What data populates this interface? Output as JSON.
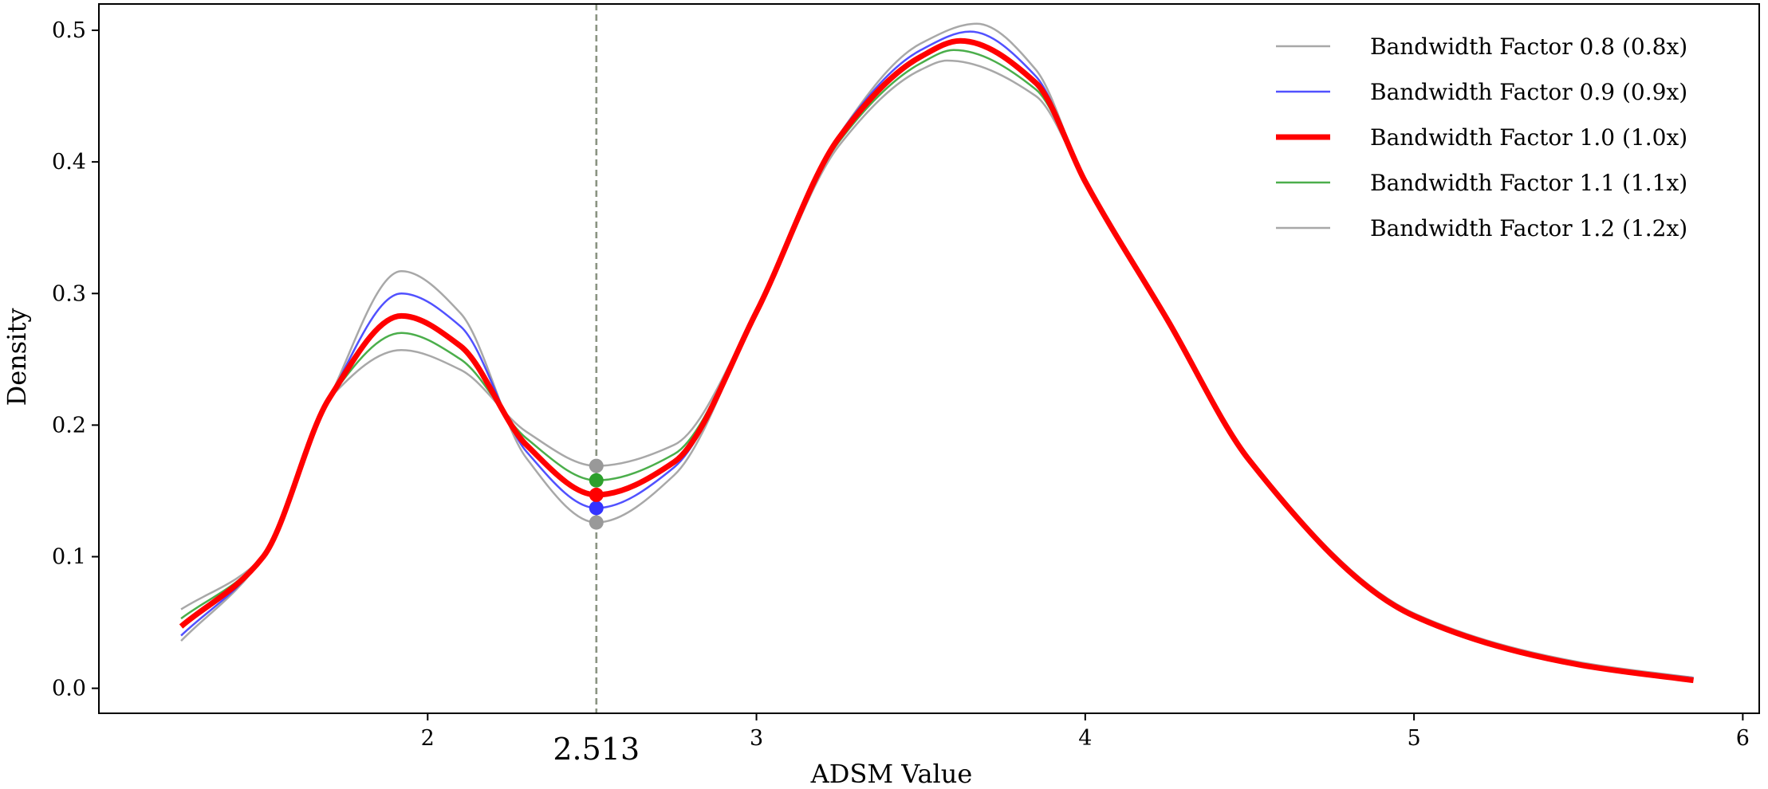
{
  "chart_data": {
    "type": "line",
    "title": "",
    "xlabel": "ADSM Value",
    "ylabel": "Density",
    "xlim": [
      1.0,
      6.05
    ],
    "ylim": [
      -0.019,
      0.52
    ],
    "grid": false,
    "legend_position": "top-right",
    "x_ticks": [
      2,
      3,
      4,
      5,
      6
    ],
    "x_tick_labels": [
      "2",
      "3",
      "4",
      "5",
      "6"
    ],
    "y_ticks": [
      0.0,
      0.1,
      0.2,
      0.3,
      0.4,
      0.5
    ],
    "y_tick_labels": [
      "0.0",
      "0.1",
      "0.2",
      "0.3",
      "0.4",
      "0.5"
    ],
    "vertical_line": {
      "x": 2.513,
      "label": "2.513",
      "style": "dashed"
    },
    "series": [
      {
        "name": "Bandwidth Factor 0.8 (0.8x)",
        "color": "#999999",
        "width": 2.5,
        "x": [
          1.25,
          1.5,
          1.7,
          1.92,
          2.1,
          2.3,
          2.513,
          2.75,
          3.0,
          3.25,
          3.5,
          3.67,
          3.85,
          4.0,
          4.25,
          4.5,
          5.0,
          5.5,
          5.85
        ],
        "y": [
          0.036,
          0.1,
          0.22,
          0.317,
          0.285,
          0.175,
          0.126,
          0.162,
          0.286,
          0.42,
          0.49,
          0.505,
          0.47,
          0.385,
          0.28,
          0.175,
          0.055,
          0.018,
          0.008
        ],
        "marker": 0.126
      },
      {
        "name": "Bandwidth Factor 0.9 (0.9x)",
        "color": "#3333ff",
        "width": 2.5,
        "x": [
          1.25,
          1.5,
          1.7,
          1.92,
          2.1,
          2.3,
          2.513,
          2.75,
          3.0,
          3.25,
          3.5,
          3.65,
          3.85,
          4.0,
          4.25,
          4.5,
          5.0,
          5.5,
          5.85
        ],
        "y": [
          0.04,
          0.1,
          0.22,
          0.3,
          0.275,
          0.18,
          0.137,
          0.168,
          0.286,
          0.42,
          0.485,
          0.499,
          0.465,
          0.385,
          0.28,
          0.175,
          0.055,
          0.018,
          0.008
        ],
        "marker": 0.137
      },
      {
        "name": "Bandwidth Factor 1.0 (1.0x)",
        "color": "#ff0000",
        "width": 7,
        "x": [
          1.25,
          1.5,
          1.7,
          1.92,
          2.1,
          2.3,
          2.513,
          2.75,
          3.0,
          3.25,
          3.5,
          3.62,
          3.85,
          4.0,
          4.25,
          4.5,
          5.0,
          5.5,
          5.85
        ],
        "y": [
          0.047,
          0.1,
          0.22,
          0.283,
          0.26,
          0.185,
          0.147,
          0.172,
          0.286,
          0.418,
          0.48,
          0.492,
          0.46,
          0.385,
          0.28,
          0.173,
          0.055,
          0.018,
          0.006
        ],
        "marker": 0.147
      },
      {
        "name": "Bandwidth Factor 1.1 (1.1x)",
        "color": "#2ca02c",
        "width": 2.5,
        "x": [
          1.25,
          1.5,
          1.7,
          1.92,
          2.1,
          2.3,
          2.513,
          2.75,
          3.0,
          3.25,
          3.5,
          3.6,
          3.85,
          4.0,
          4.25,
          4.5,
          5.0,
          5.5,
          5.85
        ],
        "y": [
          0.053,
          0.1,
          0.22,
          0.27,
          0.25,
          0.19,
          0.158,
          0.178,
          0.286,
          0.415,
          0.475,
          0.485,
          0.455,
          0.385,
          0.28,
          0.175,
          0.056,
          0.019,
          0.007
        ],
        "marker": 0.158
      },
      {
        "name": "Bandwidth Factor 1.2 (1.2x)",
        "color": "#999999",
        "width": 2.5,
        "x": [
          1.25,
          1.5,
          1.7,
          1.92,
          2.1,
          2.3,
          2.513,
          2.75,
          3.0,
          3.25,
          3.5,
          3.58,
          3.85,
          4.0,
          4.25,
          4.5,
          5.0,
          5.5,
          5.85
        ],
        "y": [
          0.06,
          0.1,
          0.22,
          0.257,
          0.242,
          0.195,
          0.169,
          0.185,
          0.286,
          0.412,
          0.47,
          0.477,
          0.45,
          0.385,
          0.28,
          0.175,
          0.057,
          0.02,
          0.008
        ],
        "marker": 0.169
      }
    ]
  }
}
